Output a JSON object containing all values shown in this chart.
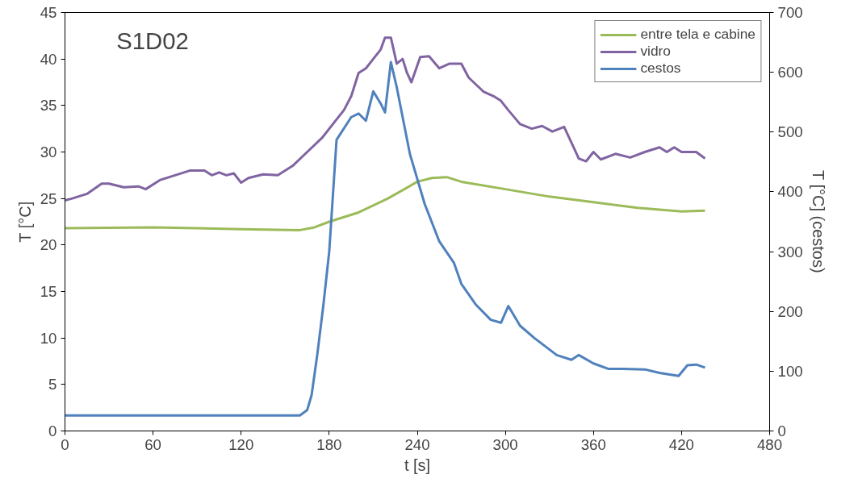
{
  "chart_data": {
    "type": "line",
    "title": "S1D02",
    "xlabel": "t [s]",
    "ylabel": "T [°C]",
    "y2label": "T [°C] (cestos)",
    "xlim": [
      0,
      480
    ],
    "xticks": [
      0,
      60,
      120,
      180,
      240,
      300,
      360,
      420,
      480
    ],
    "ylim": [
      0,
      45
    ],
    "yticks": [
      0,
      5,
      10,
      15,
      20,
      25,
      30,
      35,
      40,
      45
    ],
    "y2lim": [
      0,
      700
    ],
    "y2ticks": [
      0,
      100,
      200,
      300,
      400,
      500,
      600,
      700
    ],
    "grid": false,
    "legend": "top right",
    "marker": "none",
    "line_style": "solid",
    "series": [
      {
        "name": "entre tela e cabine",
        "color": "#9bbb59",
        "x": [
          0,
          60,
          120,
          160,
          170,
          180,
          200,
          220,
          240,
          250,
          260,
          270,
          300,
          330,
          360,
          390,
          420,
          436
        ],
        "values": [
          21.8,
          21.9,
          21.7,
          21.6,
          21.9,
          22.5,
          23.5,
          25,
          26.8,
          27.2,
          27.3,
          26.8,
          26,
          25.2,
          24.6,
          24,
          23.6,
          23.7
        ]
      },
      {
        "name": "vidro",
        "color": "#8064a2",
        "x": [
          0,
          5,
          15,
          25,
          30,
          40,
          50,
          55,
          65,
          75,
          85,
          95,
          100,
          105,
          110,
          115,
          120,
          125,
          135,
          145,
          155,
          165,
          175,
          185,
          190,
          195,
          200,
          205,
          210,
          215,
          218,
          222,
          226,
          230,
          233,
          236,
          242,
          248,
          255,
          262,
          270,
          275,
          285,
          292,
          297,
          302,
          310,
          318,
          325,
          332,
          340,
          345,
          350,
          355,
          360,
          365,
          375,
          385,
          395,
          405,
          410,
          415,
          420,
          430,
          436
        ],
        "values": [
          24.8,
          25,
          25.5,
          26.6,
          26.6,
          26.2,
          26.3,
          26,
          27,
          27.5,
          28,
          28,
          27.5,
          27.8,
          27.5,
          27.7,
          26.7,
          27.2,
          27.6,
          27.5,
          28.5,
          30,
          31.5,
          33.5,
          34.5,
          36,
          38.5,
          39,
          40,
          41,
          42.3,
          42.3,
          39.5,
          40,
          38.5,
          37.5,
          40.2,
          40.3,
          39,
          39.5,
          39.5,
          38,
          36.5,
          36,
          35.5,
          34.5,
          33,
          32.5,
          32.8,
          32.2,
          32.7,
          31,
          29.3,
          29,
          30,
          29.2,
          29.8,
          29.4,
          30,
          30.5,
          30,
          30.5,
          30,
          30,
          29.3
        ]
      },
      {
        "name": "cestos",
        "color": "#4f81bd",
        "axis": "y2",
        "x": [
          0,
          60,
          120,
          160,
          165,
          168,
          172,
          176,
          180,
          185,
          195,
          200,
          205,
          210,
          215,
          218,
          222,
          226,
          235,
          245,
          255,
          265,
          270,
          280,
          290,
          297,
          302,
          310,
          320,
          335,
          345,
          350,
          360,
          370,
          380,
          395,
          405,
          418,
          424,
          430,
          436
        ],
        "values": [
          26,
          26,
          26,
          26,
          35,
          60,
          130,
          210,
          300,
          487,
          525,
          531,
          519,
          568,
          548,
          533,
          617,
          575,
          463,
          380,
          317,
          281,
          246,
          211,
          186,
          181,
          209,
          176,
          155,
          127,
          119,
          127,
          113,
          104,
          104,
          103,
          97,
          92,
          110,
          111,
          106
        ]
      }
    ]
  }
}
